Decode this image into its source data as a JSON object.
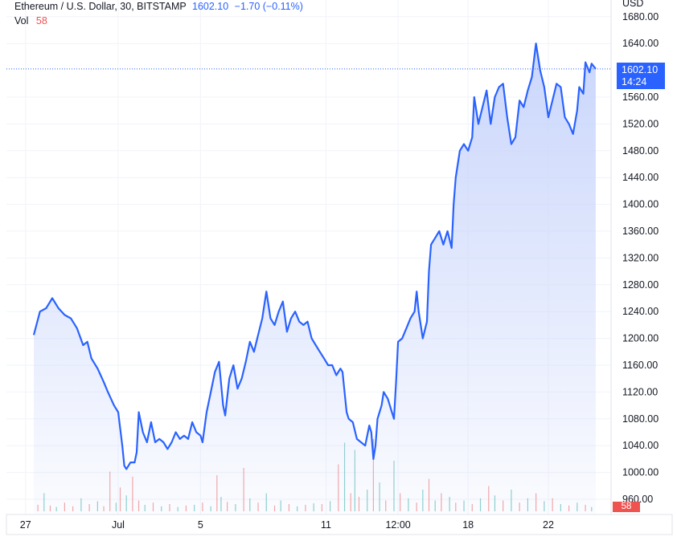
{
  "header": {
    "symbol": "Ethereum / U.S. Dollar, 30, BITSTAMP",
    "last_price": "1602.10",
    "change": "−1.70 (−0.11%)",
    "volume_label": "Vol",
    "volume_value": "58",
    "currency": "USD"
  },
  "price_marker": {
    "price": "1602.10",
    "countdown": "14:24"
  },
  "volume_marker": "58",
  "colors": {
    "line": "#2962ff",
    "area_top": "#c7d4fb",
    "up_volume": "#26a69a",
    "down_volume": "#ef5350",
    "grid": "#f0f3fa"
  },
  "chart_data": {
    "type": "area",
    "title": "Ethereum / U.S. Dollar, 30, BITSTAMP",
    "y_unit": "USD",
    "ylim": [
      940,
      1700
    ],
    "y_ticks": [
      "1680.00",
      "1640.00",
      "1560.00",
      "1520.00",
      "1480.00",
      "1440.00",
      "1400.00",
      "1360.00",
      "1320.00",
      "1280.00",
      "1240.00",
      "1200.00",
      "1160.00",
      "1120.00",
      "1080.00",
      "1040.00",
      "1000.00",
      "960.00"
    ],
    "x_ticks": [
      "27",
      "Jul",
      "5",
      "11",
      "12:00",
      "18",
      "22"
    ],
    "grid": true,
    "last_price": 1602.1,
    "series": [
      {
        "name": "Ethereum / U.S. Dollar",
        "points": [
          [
            0,
            1205
          ],
          [
            0.3,
            1240
          ],
          [
            0.6,
            1245
          ],
          [
            0.9,
            1260
          ],
          [
            1.2,
            1245
          ],
          [
            1.5,
            1235
          ],
          [
            1.8,
            1230
          ],
          [
            2.1,
            1215
          ],
          [
            2.4,
            1190
          ],
          [
            2.6,
            1195
          ],
          [
            2.8,
            1170
          ],
          [
            3.1,
            1155
          ],
          [
            3.4,
            1135
          ],
          [
            3.6,
            1120
          ],
          [
            3.9,
            1100
          ],
          [
            4.1,
            1090
          ],
          [
            4.3,
            1040
          ],
          [
            4.4,
            1010
          ],
          [
            4.5,
            1005
          ],
          [
            4.7,
            1015
          ],
          [
            4.9,
            1015
          ],
          [
            5.0,
            1030
          ],
          [
            5.1,
            1090
          ],
          [
            5.3,
            1060
          ],
          [
            5.5,
            1045
          ],
          [
            5.7,
            1075
          ],
          [
            5.9,
            1045
          ],
          [
            6.1,
            1050
          ],
          [
            6.3,
            1045
          ],
          [
            6.5,
            1035
          ],
          [
            6.7,
            1045
          ],
          [
            6.9,
            1060
          ],
          [
            7.1,
            1050
          ],
          [
            7.3,
            1055
          ],
          [
            7.5,
            1050
          ],
          [
            7.7,
            1075
          ],
          [
            7.9,
            1060
          ],
          [
            8.1,
            1055
          ],
          [
            8.2,
            1045
          ],
          [
            8.4,
            1090
          ],
          [
            8.6,
            1120
          ],
          [
            8.8,
            1150
          ],
          [
            9.0,
            1165
          ],
          [
            9.2,
            1100
          ],
          [
            9.3,
            1085
          ],
          [
            9.5,
            1140
          ],
          [
            9.7,
            1160
          ],
          [
            9.9,
            1125
          ],
          [
            10.1,
            1140
          ],
          [
            10.3,
            1165
          ],
          [
            10.5,
            1195
          ],
          [
            10.7,
            1180
          ],
          [
            10.9,
            1205
          ],
          [
            11.1,
            1230
          ],
          [
            11.3,
            1270
          ],
          [
            11.5,
            1230
          ],
          [
            11.7,
            1220
          ],
          [
            11.9,
            1240
          ],
          [
            12.1,
            1255
          ],
          [
            12.3,
            1210
          ],
          [
            12.5,
            1230
          ],
          [
            12.7,
            1240
          ],
          [
            12.9,
            1225
          ],
          [
            13.1,
            1220
          ],
          [
            13.3,
            1225
          ],
          [
            13.5,
            1200
          ],
          [
            13.7,
            1190
          ],
          [
            13.9,
            1180
          ],
          [
            14.1,
            1170
          ],
          [
            14.3,
            1160
          ],
          [
            14.5,
            1160
          ],
          [
            14.7,
            1145
          ],
          [
            14.9,
            1155
          ],
          [
            15.0,
            1150
          ],
          [
            15.2,
            1090
          ],
          [
            15.3,
            1080
          ],
          [
            15.5,
            1075
          ],
          [
            15.7,
            1050
          ],
          [
            15.9,
            1045
          ],
          [
            16.1,
            1040
          ],
          [
            16.3,
            1070
          ],
          [
            16.4,
            1060
          ],
          [
            16.5,
            1020
          ],
          [
            16.6,
            1040
          ],
          [
            16.7,
            1080
          ],
          [
            16.9,
            1100
          ],
          [
            17.0,
            1120
          ],
          [
            17.2,
            1110
          ],
          [
            17.4,
            1090
          ],
          [
            17.5,
            1080
          ],
          [
            17.6,
            1135
          ],
          [
            17.7,
            1195
          ],
          [
            17.9,
            1200
          ],
          [
            18.1,
            1215
          ],
          [
            18.3,
            1230
          ],
          [
            18.5,
            1240
          ],
          [
            18.6,
            1270
          ],
          [
            18.7,
            1240
          ],
          [
            18.9,
            1200
          ],
          [
            19.1,
            1225
          ],
          [
            19.2,
            1300
          ],
          [
            19.3,
            1340
          ],
          [
            19.5,
            1350
          ],
          [
            19.7,
            1360
          ],
          [
            19.9,
            1340
          ],
          [
            20.1,
            1360
          ],
          [
            20.3,
            1335
          ],
          [
            20.4,
            1400
          ],
          [
            20.5,
            1440
          ],
          [
            20.7,
            1480
          ],
          [
            20.9,
            1490
          ],
          [
            21.1,
            1480
          ],
          [
            21.3,
            1500
          ],
          [
            21.4,
            1560
          ],
          [
            21.6,
            1520
          ],
          [
            21.8,
            1545
          ],
          [
            22.0,
            1570
          ],
          [
            22.2,
            1520
          ],
          [
            22.4,
            1560
          ],
          [
            22.6,
            1575
          ],
          [
            22.8,
            1580
          ],
          [
            23.0,
            1530
          ],
          [
            23.2,
            1490
          ],
          [
            23.4,
            1500
          ],
          [
            23.6,
            1555
          ],
          [
            23.8,
            1545
          ],
          [
            24.0,
            1570
          ],
          [
            24.2,
            1590
          ],
          [
            24.4,
            1640
          ],
          [
            24.6,
            1600
          ],
          [
            24.8,
            1575
          ],
          [
            25.0,
            1530
          ],
          [
            25.2,
            1555
          ],
          [
            25.4,
            1580
          ],
          [
            25.6,
            1575
          ],
          [
            25.8,
            1530
          ],
          [
            26.0,
            1520
          ],
          [
            26.2,
            1505
          ],
          [
            26.4,
            1540
          ],
          [
            26.5,
            1575
          ],
          [
            26.7,
            1565
          ],
          [
            26.8,
            1612
          ],
          [
            27.0,
            1597
          ],
          [
            27.1,
            1610
          ],
          [
            27.3,
            1602.1
          ]
        ]
      }
    ],
    "volume": {
      "name": "Vol",
      "bars": [
        [
          0.2,
          9,
          0
        ],
        [
          0.5,
          25,
          1
        ],
        [
          0.8,
          8,
          0
        ],
        [
          1.1,
          6,
          1
        ],
        [
          1.5,
          12,
          0
        ],
        [
          1.9,
          7,
          0
        ],
        [
          2.3,
          18,
          1
        ],
        [
          2.7,
          10,
          0
        ],
        [
          3.1,
          14,
          1
        ],
        [
          3.4,
          7,
          0
        ],
        [
          3.7,
          55,
          0
        ],
        [
          4.0,
          12,
          1
        ],
        [
          4.2,
          33,
          0
        ],
        [
          4.5,
          22,
          1
        ],
        [
          4.8,
          48,
          0
        ],
        [
          5.1,
          15,
          0
        ],
        [
          5.4,
          9,
          1
        ],
        [
          5.8,
          12,
          0
        ],
        [
          6.2,
          7,
          1
        ],
        [
          6.6,
          10,
          0
        ],
        [
          7.0,
          6,
          1
        ],
        [
          7.4,
          8,
          0
        ],
        [
          7.8,
          9,
          1
        ],
        [
          8.2,
          12,
          0
        ],
        [
          8.6,
          7,
          1
        ],
        [
          8.9,
          50,
          0
        ],
        [
          9.1,
          20,
          1
        ],
        [
          9.4,
          13,
          0
        ],
        [
          9.8,
          10,
          1
        ],
        [
          10.2,
          60,
          0
        ],
        [
          10.5,
          18,
          1
        ],
        [
          10.9,
          12,
          0
        ],
        [
          11.3,
          25,
          1
        ],
        [
          11.7,
          8,
          0
        ],
        [
          12.0,
          15,
          1
        ],
        [
          12.4,
          10,
          0
        ],
        [
          12.8,
          7,
          1
        ],
        [
          13.2,
          9,
          0
        ],
        [
          13.6,
          11,
          1
        ],
        [
          14.0,
          10,
          0
        ],
        [
          14.4,
          14,
          1
        ],
        [
          14.8,
          65,
          0
        ],
        [
          15.1,
          95,
          1
        ],
        [
          15.4,
          25,
          0
        ],
        [
          15.6,
          85,
          1
        ],
        [
          15.8,
          20,
          0
        ],
        [
          16.2,
          30,
          1
        ],
        [
          16.5,
          100,
          0
        ],
        [
          16.8,
          40,
          1
        ],
        [
          17.1,
          15,
          0
        ],
        [
          17.5,
          70,
          1
        ],
        [
          17.8,
          25,
          0
        ],
        [
          18.2,
          18,
          1
        ],
        [
          18.6,
          12,
          0
        ],
        [
          18.9,
          30,
          1
        ],
        [
          19.2,
          45,
          0
        ],
        [
          19.5,
          15,
          1
        ],
        [
          19.8,
          25,
          0
        ],
        [
          20.2,
          20,
          1
        ],
        [
          20.5,
          12,
          0
        ],
        [
          20.9,
          15,
          1
        ],
        [
          21.3,
          10,
          0
        ],
        [
          21.7,
          18,
          1
        ],
        [
          22.1,
          35,
          0
        ],
        [
          22.4,
          22,
          1
        ],
        [
          22.8,
          15,
          0
        ],
        [
          23.2,
          30,
          1
        ],
        [
          23.6,
          12,
          0
        ],
        [
          24.0,
          18,
          1
        ],
        [
          24.4,
          25,
          0
        ],
        [
          24.8,
          14,
          1
        ],
        [
          25.2,
          18,
          0
        ],
        [
          25.6,
          10,
          1
        ],
        [
          26.0,
          8,
          0
        ],
        [
          26.4,
          12,
          1
        ],
        [
          26.8,
          9,
          0
        ],
        [
          27.1,
          6,
          1
        ]
      ]
    }
  }
}
